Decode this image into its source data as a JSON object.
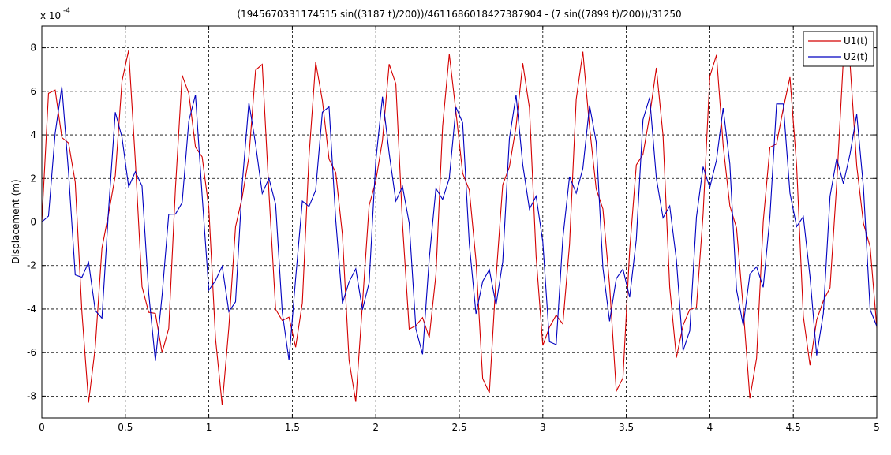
{
  "chart_data": {
    "type": "line",
    "title": "(1945670331174515 sin((3187 t)/200))/4611686018427387904 - (7 sin((7899 t)/200))/31250",
    "y_label": "Displacement (m)",
    "y_multiplier": "x 10",
    "y_multiplier_power": "-4",
    "xlim": [
      0,
      5
    ],
    "xticks": [
      0,
      0.5,
      1,
      1.5,
      2,
      2.5,
      3,
      3.5,
      4,
      4.5,
      5
    ],
    "ylim": [
      -9,
      9
    ],
    "yticks": [
      -8,
      -6,
      -4,
      -2,
      0,
      2,
      4,
      6,
      8
    ],
    "grid": true,
    "legend": "upper right",
    "x": [
      0,
      0.04,
      0.08,
      0.12,
      0.16,
      0.2,
      0.24,
      0.28,
      0.32,
      0.36,
      0.4,
      0.44,
      0.48,
      0.52,
      0.56,
      0.6,
      0.64,
      0.68,
      0.72,
      0.76,
      0.8,
      0.84,
      0.88,
      0.92,
      0.96,
      1,
      1.04,
      1.08,
      1.12,
      1.16,
      1.2,
      1.24,
      1.28,
      1.32,
      1.36,
      1.4,
      1.44,
      1.48,
      1.52,
      1.56,
      1.6,
      1.64,
      1.68,
      1.72,
      1.76,
      1.8,
      1.84,
      1.88,
      1.92,
      1.96,
      2,
      2.04,
      2.08,
      2.12,
      2.16,
      2.2,
      2.24,
      2.28,
      2.32,
      2.36,
      2.4,
      2.44,
      2.48,
      2.52,
      2.56,
      2.6,
      2.64,
      2.68,
      2.72,
      2.76,
      2.8,
      2.84,
      2.88,
      2.92,
      2.96,
      3,
      3.04,
      3.08,
      3.12,
      3.16,
      3.2,
      3.24,
      3.28,
      3.32,
      3.36,
      3.4,
      3.44,
      3.48,
      3.52,
      3.56,
      3.6,
      3.64,
      3.68,
      3.72,
      3.76,
      3.8,
      3.84,
      3.88,
      3.92,
      3.96,
      4,
      4.04,
      4.08,
      4.12,
      4.16,
      4.2,
      4.24,
      4.28,
      4.32,
      4.36,
      4.4,
      4.44,
      4.48,
      4.52,
      4.56,
      4.6,
      4.64,
      4.68,
      4.72,
      4.76,
      4.8,
      4.84,
      4.88,
      4.92,
      4.96,
      5
    ],
    "series": [
      {
        "name": "U1(t)",
        "color": "#d40000",
        "values": [
          0,
          5.91,
          6.06,
          3.88,
          3.63,
          1.83,
          -4.13,
          -8.29,
          -5.75,
          -1.2,
          0.39,
          2.13,
          6.47,
          7.89,
          2.79,
          -2.97,
          -4.15,
          -4.2,
          -6,
          -4.89,
          1.53,
          6.74,
          5.91,
          3.44,
          2.99,
          0.64,
          -5.34,
          -8.42,
          -4.84,
          -0.22,
          1.14,
          2.99,
          6.97,
          7.24,
          1.36,
          -4.01,
          -4.53,
          -4.37,
          -5.75,
          -3.72,
          3.01,
          7.34,
          5.58,
          2.89,
          2.27,
          -0.58,
          -6.36,
          -8.26,
          -3.77,
          0.76,
          1.88,
          3.75,
          7.25,
          6.34,
          -0.11,
          -4.92,
          -4.76,
          -4.39,
          -5.31,
          -2.42,
          4.39,
          7.71,
          5.05,
          2.24,
          1.46,
          -1.78,
          -7.19,
          -7.85,
          -2.58,
          1.71,
          2.53,
          4.39,
          7.29,
          5.24,
          -1.59,
          -5.67,
          -4.83,
          -4.28,
          -4.69,
          -1.04,
          5.63,
          7.82,
          4.36,
          1.51,
          0.6,
          -2.91,
          -7.77,
          -7.16,
          -1.31,
          2.62,
          3.11,
          4.88,
          7.08,
          3.97,
          -3.01,
          -6.23,
          -4.74,
          -4.02,
          -3.93,
          0.37,
          6.68,
          7.67,
          3.52,
          0.74,
          -0.27,
          -3.95,
          -8.1,
          -6.26,
          0.02,
          3.43,
          3.59,
          5.21,
          6.65,
          2.58,
          -4.33,
          -6.58,
          -4.5,
          -3.62,
          -3.02,
          1.76,
          7.51,
          7.27,
          2.58,
          -0.06,
          -1.14,
          -4.86
        ]
      },
      {
        "name": "U2(t)",
        "color": "#0000c0",
        "values": [
          0,
          0.27,
          4.08,
          6.22,
          2.27,
          -2.43,
          -2.54,
          -1.85,
          -4.07,
          -4.42,
          0.58,
          5.04,
          3.89,
          1.61,
          2.31,
          1.65,
          -3.27,
          -6.38,
          -3.39,
          0.35,
          0.36,
          0.88,
          4.63,
          5.84,
          1.2,
          -3.13,
          -2.69,
          -2.03,
          -4.12,
          -3.67,
          1.74,
          5.48,
          3.58,
          1.31,
          2,
          0.81,
          -4.16,
          -6.34,
          -2.59,
          0.96,
          0.71,
          1.46,
          5.04,
          5.29,
          0.1,
          -3.74,
          -2.75,
          -2.15,
          -4.03,
          -2.79,
          2.82,
          5.75,
          3.16,
          0.96,
          1.63,
          -0.05,
          -4.91,
          -6.08,
          -1.69,
          1.54,
          1.04,
          2,
          5.27,
          4.56,
          -1.02,
          -4.22,
          -2.73,
          -2.19,
          -3.81,
          -1.83,
          3.83,
          5.83,
          2.63,
          0.59,
          1.19,
          -0.91,
          -5.5,
          -5.63,
          -0.75,
          2.08,
          1.32,
          2.46,
          5.35,
          3.67,
          -2.11,
          -4.56,
          -2.6,
          -2.16,
          -3.46,
          -0.8,
          4.7,
          5.72,
          2.01,
          0.19,
          0.74,
          -1.74,
          -5.91,
          -5,
          0.22,
          2.54,
          1.58,
          2.84,
          5.23,
          2.67,
          -3.11,
          -4.75,
          -2.39,
          -2.06,
          -3,
          0.24,
          5.42,
          5.42,
          1.32,
          -0.21,
          0.25,
          -2.51,
          -6.13,
          -4.2,
          1.18,
          2.92,
          1.76,
          3.13,
          4.95,
          1.59,
          -4.02,
          -4.79
        ]
      }
    ]
  }
}
